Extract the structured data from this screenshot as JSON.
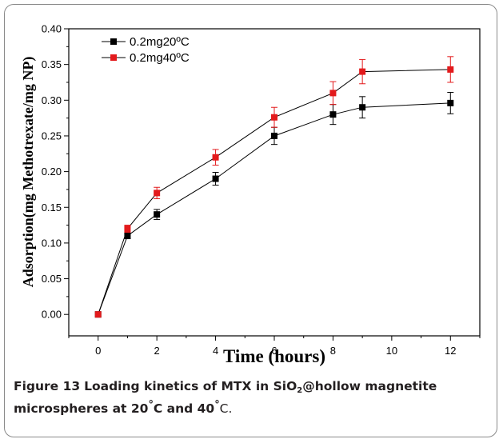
{
  "chart_data": {
    "type": "line",
    "xlabel": "Time (hours)",
    "ylabel": "Adsorption(mg Methotrexate/mg NP)",
    "xlim": [
      -1,
      13
    ],
    "ylim": [
      -0.03,
      0.4
    ],
    "xticks": [
      0,
      2,
      4,
      6,
      8,
      10,
      12
    ],
    "yticks": [
      0.0,
      0.05,
      0.1,
      0.15,
      0.2,
      0.25,
      0.3,
      0.35,
      0.4
    ],
    "legend_position": "top-left",
    "grid": false,
    "series": [
      {
        "name": "0.2mg20ºC",
        "color": "#000000",
        "x": [
          0,
          1,
          2,
          4,
          6,
          8,
          9,
          12
        ],
        "y": [
          0.0,
          0.11,
          0.14,
          0.19,
          0.25,
          0.28,
          0.29,
          0.296
        ],
        "error": [
          0.0,
          0.004,
          0.007,
          0.009,
          0.012,
          0.014,
          0.015,
          0.015
        ]
      },
      {
        "name": "0.2mg40ºC",
        "color": "#e31a1c",
        "x": [
          0,
          1,
          2,
          4,
          6,
          8,
          9,
          12
        ],
        "y": [
          0.0,
          0.12,
          0.17,
          0.22,
          0.276,
          0.31,
          0.34,
          0.343
        ],
        "error": [
          0.0,
          0.005,
          0.008,
          0.011,
          0.014,
          0.016,
          0.017,
          0.018
        ]
      }
    ]
  },
  "caption": {
    "label": "Figure 13",
    "text_before_sub": "Loading kinetics of MTX in SiO",
    "subscript": "2",
    "text_after_sub": "@hollow magnetite microspheres at 20",
    "degree": "°",
    "text_mid": "C and 40",
    "text_end": "C."
  }
}
